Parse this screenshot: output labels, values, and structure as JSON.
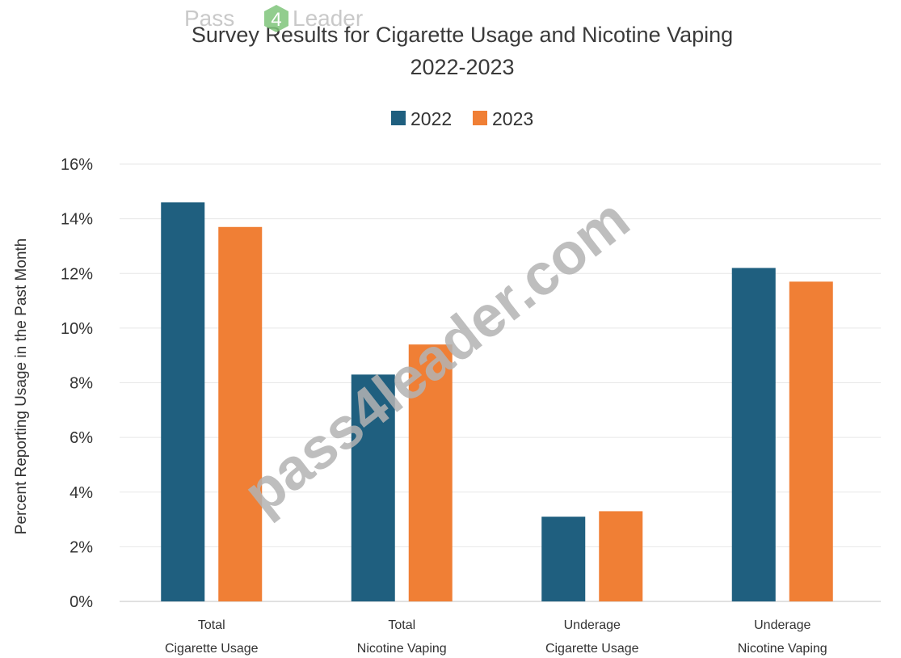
{
  "chart_data": {
    "type": "bar",
    "title": "Survey Results for Cigarette Usage and Nicotine Vaping",
    "subtitle": "2022-2023",
    "ylabel": "Percent Reporting Usage in the Past Month",
    "xlabel": "",
    "categories": [
      [
        "Total",
        "Cigarette Usage"
      ],
      [
        "Total",
        "Nicotine Vaping"
      ],
      [
        "Underage",
        "Cigarette Usage"
      ],
      [
        "Underage",
        "Nicotine Vaping"
      ]
    ],
    "series": [
      {
        "name": "2022",
        "color": "#1f5f7f",
        "values": [
          14.6,
          8.3,
          3.1,
          12.2
        ]
      },
      {
        "name": "2023",
        "color": "#f07f35",
        "values": [
          13.7,
          9.4,
          3.3,
          11.7
        ]
      }
    ],
    "ylim": [
      0,
      16
    ],
    "yticks": [
      0,
      2,
      4,
      6,
      8,
      10,
      12,
      14,
      16
    ],
    "ytick_suffix": "%",
    "grid": true,
    "legend_position": "top-center"
  },
  "watermark": {
    "logo_left": "Pass",
    "logo_number": "4",
    "logo_right": "Leader",
    "diagonal_text": "pass4leader.com"
  }
}
